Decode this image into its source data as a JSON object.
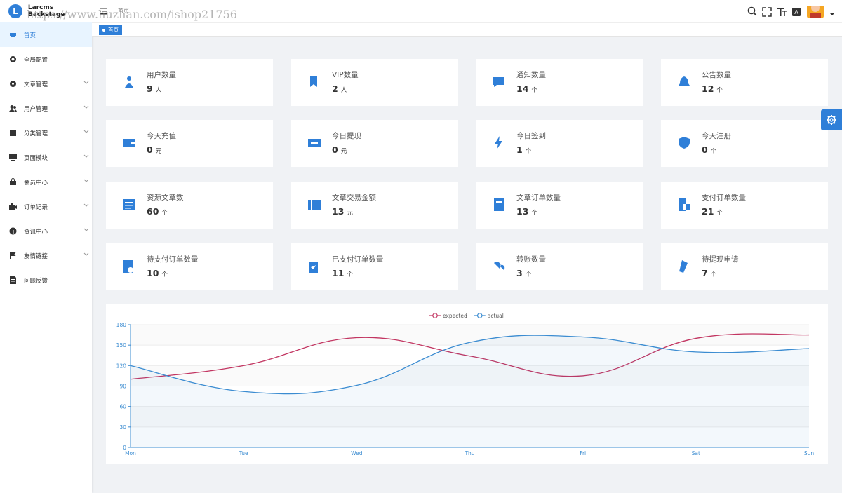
{
  "brand": "Larcms Backstage",
  "watermark": "https://www.huzhan.com/ishop21756",
  "header": {
    "breadcrumb": "首页"
  },
  "tab": "首页",
  "menu": [
    {
      "label": "首页",
      "active": true,
      "submenu": false
    },
    {
      "label": "全局配置",
      "active": false,
      "submenu": false
    },
    {
      "label": "文章管理",
      "active": false,
      "submenu": true
    },
    {
      "label": "用户管理",
      "active": false,
      "submenu": true
    },
    {
      "label": "分类管理",
      "active": false,
      "submenu": true
    },
    {
      "label": "页面模块",
      "active": false,
      "submenu": true
    },
    {
      "label": "会员中心",
      "active": false,
      "submenu": true
    },
    {
      "label": "订单记录",
      "active": false,
      "submenu": true
    },
    {
      "label": "资讯中心",
      "active": false,
      "submenu": true
    },
    {
      "label": "友情链接",
      "active": false,
      "submenu": true
    },
    {
      "label": "问题反馈",
      "active": false,
      "submenu": false
    }
  ],
  "stats": [
    {
      "label": "用户数量",
      "value": 9,
      "unit": "人"
    },
    {
      "label": "VIP数量",
      "value": 2,
      "unit": "人"
    },
    {
      "label": "通知数量",
      "value": 14,
      "unit": "个"
    },
    {
      "label": "公告数量",
      "value": 12,
      "unit": "个"
    },
    {
      "label": "今天充值",
      "value": 0,
      "unit": "元"
    },
    {
      "label": "今日提现",
      "value": 0,
      "unit": "元"
    },
    {
      "label": "今日签到",
      "value": 1,
      "unit": "个"
    },
    {
      "label": "今天注册",
      "value": 0,
      "unit": "个"
    },
    {
      "label": "资源文章数",
      "value": 60,
      "unit": "个"
    },
    {
      "label": "文章交易金额",
      "value": 13,
      "unit": "元"
    },
    {
      "label": "文章订单数量",
      "value": 13,
      "unit": "个"
    },
    {
      "label": "支付订单数量",
      "value": 21,
      "unit": "个"
    },
    {
      "label": "待支付订单数量",
      "value": 10,
      "unit": "个"
    },
    {
      "label": "已支付订单数量",
      "value": 11,
      "unit": "个"
    },
    {
      "label": "转账数量",
      "value": 3,
      "unit": "个"
    },
    {
      "label": "待提现申请",
      "value": 7,
      "unit": "个"
    }
  ],
  "chart_data": {
    "type": "line",
    "categories": [
      "Mon",
      "Tue",
      "Wed",
      "Thu",
      "Fri",
      "Sat",
      "Sun"
    ],
    "series": [
      {
        "name": "expected",
        "color": "#c23561",
        "values": [
          100,
          120,
          161,
          134,
          105,
          160,
          165
        ]
      },
      {
        "name": "actual",
        "color": "#3b8cd1",
        "values": [
          120,
          82,
          91,
          154,
          162,
          140,
          145
        ],
        "area": true
      }
    ],
    "ylim": [
      0,
      180
    ],
    "yticks": [
      0,
      30,
      60,
      90,
      120,
      150,
      180
    ],
    "grid": true
  }
}
